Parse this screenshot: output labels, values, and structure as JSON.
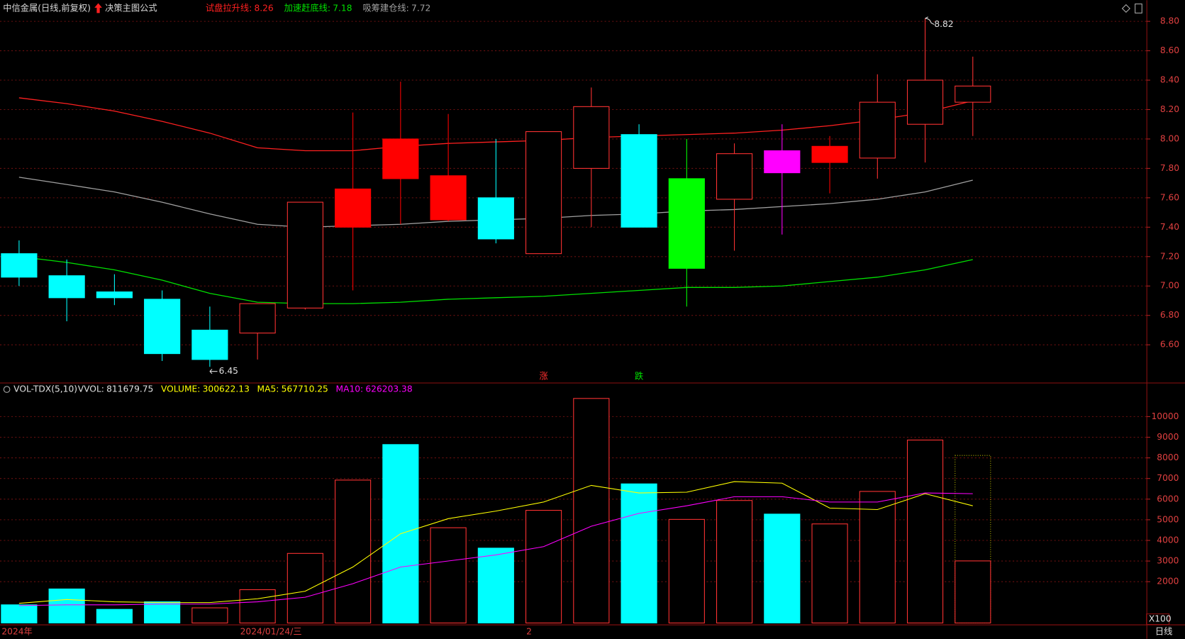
{
  "chart_data": [
    {
      "type": "candlestick",
      "title": "中信金属(日线,前复权)",
      "subtitle": "决策主图公式",
      "open": [
        7.22,
        7.07,
        6.96,
        6.91,
        6.7,
        6.68,
        6.85,
        7.4,
        8.0,
        7.75,
        7.6,
        7.22,
        7.8,
        8.03,
        7.73,
        7.59,
        7.92,
        7.95,
        7.87,
        8.1,
        8.25
      ],
      "high": [
        7.31,
        7.18,
        7.08,
        6.97,
        6.86,
        6.88,
        7.57,
        8.18,
        8.39,
        8.17,
        8.0,
        8.05,
        8.35,
        8.1,
        8.0,
        7.97,
        8.1,
        8.02,
        8.44,
        8.82,
        8.56
      ],
      "low": [
        7.0,
        6.76,
        6.87,
        6.49,
        6.45,
        6.5,
        6.84,
        6.97,
        7.42,
        7.44,
        7.29,
        7.22,
        7.4,
        7.4,
        6.86,
        7.24,
        7.35,
        7.63,
        7.73,
        7.84,
        8.02
      ],
      "close": [
        7.06,
        6.92,
        6.92,
        6.54,
        6.5,
        6.88,
        7.57,
        7.66,
        7.73,
        7.45,
        7.32,
        8.05,
        8.22,
        7.4,
        7.12,
        7.9,
        7.77,
        7.84,
        8.25,
        8.4,
        8.36
      ],
      "colors": [
        "#00ffff",
        "#00ffff",
        "#00ffff",
        "#00ffff",
        "#00ffff",
        "#ff3232",
        "#ff3232",
        "#ff0000",
        "#ff0000",
        "#ff0000",
        "#00ffff",
        "#ff3232",
        "#ff3232",
        "#00ffff",
        "#00ff00",
        "#ff3232",
        "#ff00ff",
        "#ff0000",
        "#ff3232",
        "#ff3232",
        "#ff3232"
      ],
      "hollow": [
        false,
        false,
        false,
        false,
        false,
        true,
        true,
        false,
        false,
        false,
        false,
        true,
        true,
        false,
        false,
        true,
        false,
        false,
        true,
        true,
        true
      ],
      "series": [
        {
          "name": "试盘拉升线:",
          "color": "#ff2020",
          "values": [
            8.28,
            8.24,
            8.19,
            8.12,
            8.04,
            7.94,
            7.92,
            7.92,
            7.95,
            7.97,
            7.98,
            7.99,
            8.01,
            8.02,
            8.03,
            8.04,
            8.06,
            8.09,
            8.13,
            8.18,
            8.26
          ]
        },
        {
          "name": "加速赶底线:",
          "color": "#00e000",
          "values": [
            7.2,
            7.16,
            7.11,
            7.04,
            6.95,
            6.89,
            6.88,
            6.88,
            6.89,
            6.91,
            6.92,
            6.93,
            6.95,
            6.97,
            6.99,
            6.99,
            7.0,
            7.03,
            7.06,
            7.11,
            7.18
          ]
        },
        {
          "name": "吸筹建仓线:",
          "color": "#a0a0a0",
          "values": [
            7.74,
            7.69,
            7.64,
            7.57,
            7.49,
            7.42,
            7.4,
            7.41,
            7.42,
            7.44,
            7.45,
            7.46,
            7.48,
            7.49,
            7.51,
            7.52,
            7.54,
            7.56,
            7.59,
            7.64,
            7.72
          ]
        }
      ],
      "signals": [
        null,
        null,
        null,
        null,
        null,
        null,
        null,
        null,
        null,
        null,
        null,
        {
          "text": "涨",
          "color": "#ff3030"
        },
        null,
        {
          "text": "跌",
          "color": "#00e000"
        },
        null,
        null,
        null,
        null,
        null,
        null,
        null
      ],
      "ylim": [
        6.348,
        8.944
      ],
      "yticks": [
        {
          "value": 6.6,
          "label": "6.60"
        },
        {
          "value": 6.8,
          "label": "6.80"
        },
        {
          "value": 7.0,
          "label": "7.00"
        },
        {
          "value": 7.2,
          "label": "7.20"
        },
        {
          "value": 7.4,
          "label": "7.40"
        },
        {
          "value": 7.6,
          "label": "7.60"
        },
        {
          "value": 7.8,
          "label": "7.80"
        },
        {
          "value": 8.0,
          "label": "8.00"
        },
        {
          "value": 8.2,
          "label": "8.20"
        },
        {
          "value": 8.4,
          "label": "8.40"
        },
        {
          "value": 8.6,
          "label": "8.60"
        },
        {
          "value": 8.8,
          "label": "8.80"
        }
      ],
      "grid": true
    },
    {
      "type": "bar",
      "title": "VOL-TDX(5,10)",
      "categories": [
        "2024年",
        null,
        null,
        null,
        null,
        "2024/01/24/三",
        null,
        null,
        null,
        null,
        null,
        "2",
        null,
        null,
        null,
        null,
        null,
        null,
        null,
        null,
        null
      ],
      "vvol": {
        "name": "VVOL:",
        "value": 811679.75,
        "color": "#b0b000"
      },
      "series": [
        {
          "name": "VOLUME:",
          "color": "#ffff00",
          "values": [
            87900,
            164800,
            65900,
            102600,
            73300,
            161200,
            337000,
            692300,
            864500,
            461500,
            362600,
            545800,
            1087900,
            674000,
            501800,
            593400,
            527500,
            479900,
            637400,
            886400,
            300622.13
          ],
          "bar_colors": [
            "#00ffff",
            "#00ffff",
            "#00ffff",
            "#00ffff",
            "#ff3232",
            "#ff3232",
            "#ff3232",
            "#ff3232",
            "#00ffff",
            "#ff3232",
            "#00ffff",
            "#ff3232",
            "#ff3232",
            "#00ffff",
            "#ff3232",
            "#ff3232",
            "#00ffff",
            "#ff3232",
            "#ff3232",
            "#ff3232",
            "#ff3232"
          ],
          "hollow": [
            false,
            false,
            false,
            false,
            true,
            true,
            true,
            true,
            false,
            true,
            false,
            true,
            true,
            false,
            true,
            true,
            false,
            true,
            true,
            true,
            true
          ]
        },
        {
          "name": "MA5:",
          "color": "#ffff00",
          "values": [
            95238,
            113553,
            102564,
            98901,
            98901,
            117216,
            153846,
            271062,
            432234,
            505495,
            542125,
            586081,
            666667,
            630037,
            633700,
            684982,
            677656,
            556777,
            549451,
            626374,
            567710.25
          ]
        },
        {
          "name": "MA10:",
          "color": "#ff00ff",
          "values": [
            84249,
            87912,
            87912,
            91575,
            91575,
            102564,
            124542,
            190476,
            271062,
            300366,
            329670,
            369963,
            468864,
            531136,
            567766,
            611722,
            611722,
            586081,
            586081,
            630037,
            626203.38
          ]
        }
      ],
      "unit_label": "X100",
      "ylim": [
        0,
        1161000
      ],
      "yticks": [
        {
          "value": 200000,
          "label": "2000"
        },
        {
          "value": 300000,
          "label": "3000"
        },
        {
          "value": 400000,
          "label": "4000"
        },
        {
          "value": 500000,
          "label": "5000"
        },
        {
          "value": 600000,
          "label": "6000"
        },
        {
          "value": 700000,
          "label": "7000"
        },
        {
          "value": 800000,
          "label": "8000"
        },
        {
          "value": 900000,
          "label": "9000"
        },
        {
          "value": 1000000,
          "label": "10000"
        }
      ],
      "grid": true
    }
  ],
  "period": "日线"
}
